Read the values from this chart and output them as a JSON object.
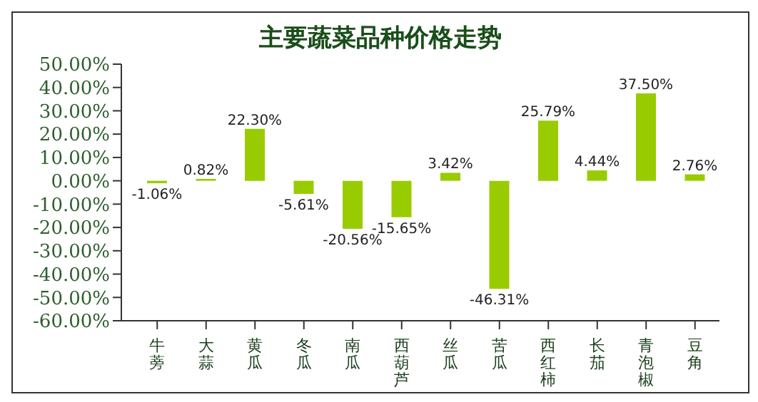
{
  "chart_data": {
    "type": "bar",
    "title": "主要蔬菜品种价格走势",
    "categories": [
      "牛蒡",
      "大蒜",
      "黄瓜",
      "冬瓜",
      "南瓜",
      "西葫芦",
      "丝瓜",
      "苦瓜",
      "西红柿",
      "长茄",
      "青泡椒",
      "豆角"
    ],
    "values": [
      -1.06,
      0.82,
      22.3,
      -5.61,
      -20.56,
      -15.65,
      3.42,
      -46.31,
      25.79,
      4.44,
      37.5,
      2.76
    ],
    "color": "#99cc00",
    "value_labels": [
      "-1.06%",
      "0.82%",
      "22.30%",
      "-5.61%",
      "-20.56%",
      "-15.65%",
      "3.42%",
      "-46.31%",
      "25.79%",
      "4.44%",
      "37.50%",
      "2.76%"
    ],
    "ylim": [
      -60,
      50
    ],
    "yticks": [
      {
        "value": 50,
        "label": "50.00%"
      },
      {
        "value": 40,
        "label": "40.00%"
      },
      {
        "value": 30,
        "label": "30.00%"
      },
      {
        "value": 20,
        "label": "20.00%"
      },
      {
        "value": 10,
        "label": "10.00%"
      },
      {
        "value": 0,
        "label": "0.00%"
      },
      {
        "value": -10,
        "label": "-10.00%"
      },
      {
        "value": -20,
        "label": "-20.00%"
      },
      {
        "value": -30,
        "label": "-30.00%"
      },
      {
        "value": -40,
        "label": "-40.00%"
      },
      {
        "value": -50,
        "label": "-50.00%"
      },
      {
        "value": -60,
        "label": "-60.00%"
      }
    ],
    "grid": false,
    "legend": false
  }
}
